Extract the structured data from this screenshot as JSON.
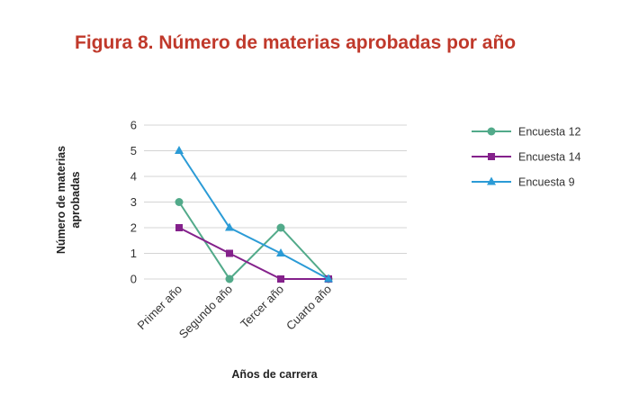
{
  "title": "Figura 8. Número de materias aprobadas por año",
  "chart_data": {
    "type": "line",
    "categories": [
      "Primer año",
      "Segundo año",
      "Tercer año",
      "Cuarto año"
    ],
    "xlabel": "Años de carrera",
    "ylabel": "Número de materias aprobadas",
    "ylabel_lines": [
      "Número de materias",
      "aprobadas"
    ],
    "ylim": [
      0,
      6
    ],
    "yticks": [
      0,
      1,
      2,
      3,
      4,
      5,
      6
    ],
    "grid": true,
    "legend": "right",
    "series": [
      {
        "name": "Encuesta 12",
        "values": [
          3,
          0,
          2,
          0
        ],
        "color": "#52aa8a",
        "marker": "circle"
      },
      {
        "name": "Encuesta 14",
        "values": [
          2,
          1,
          0,
          0
        ],
        "color": "#84218b",
        "marker": "square"
      },
      {
        "name": "Encuesta 9",
        "values": [
          5,
          2,
          1,
          0
        ],
        "color": "#2b9bd6",
        "marker": "triangle"
      }
    ]
  }
}
